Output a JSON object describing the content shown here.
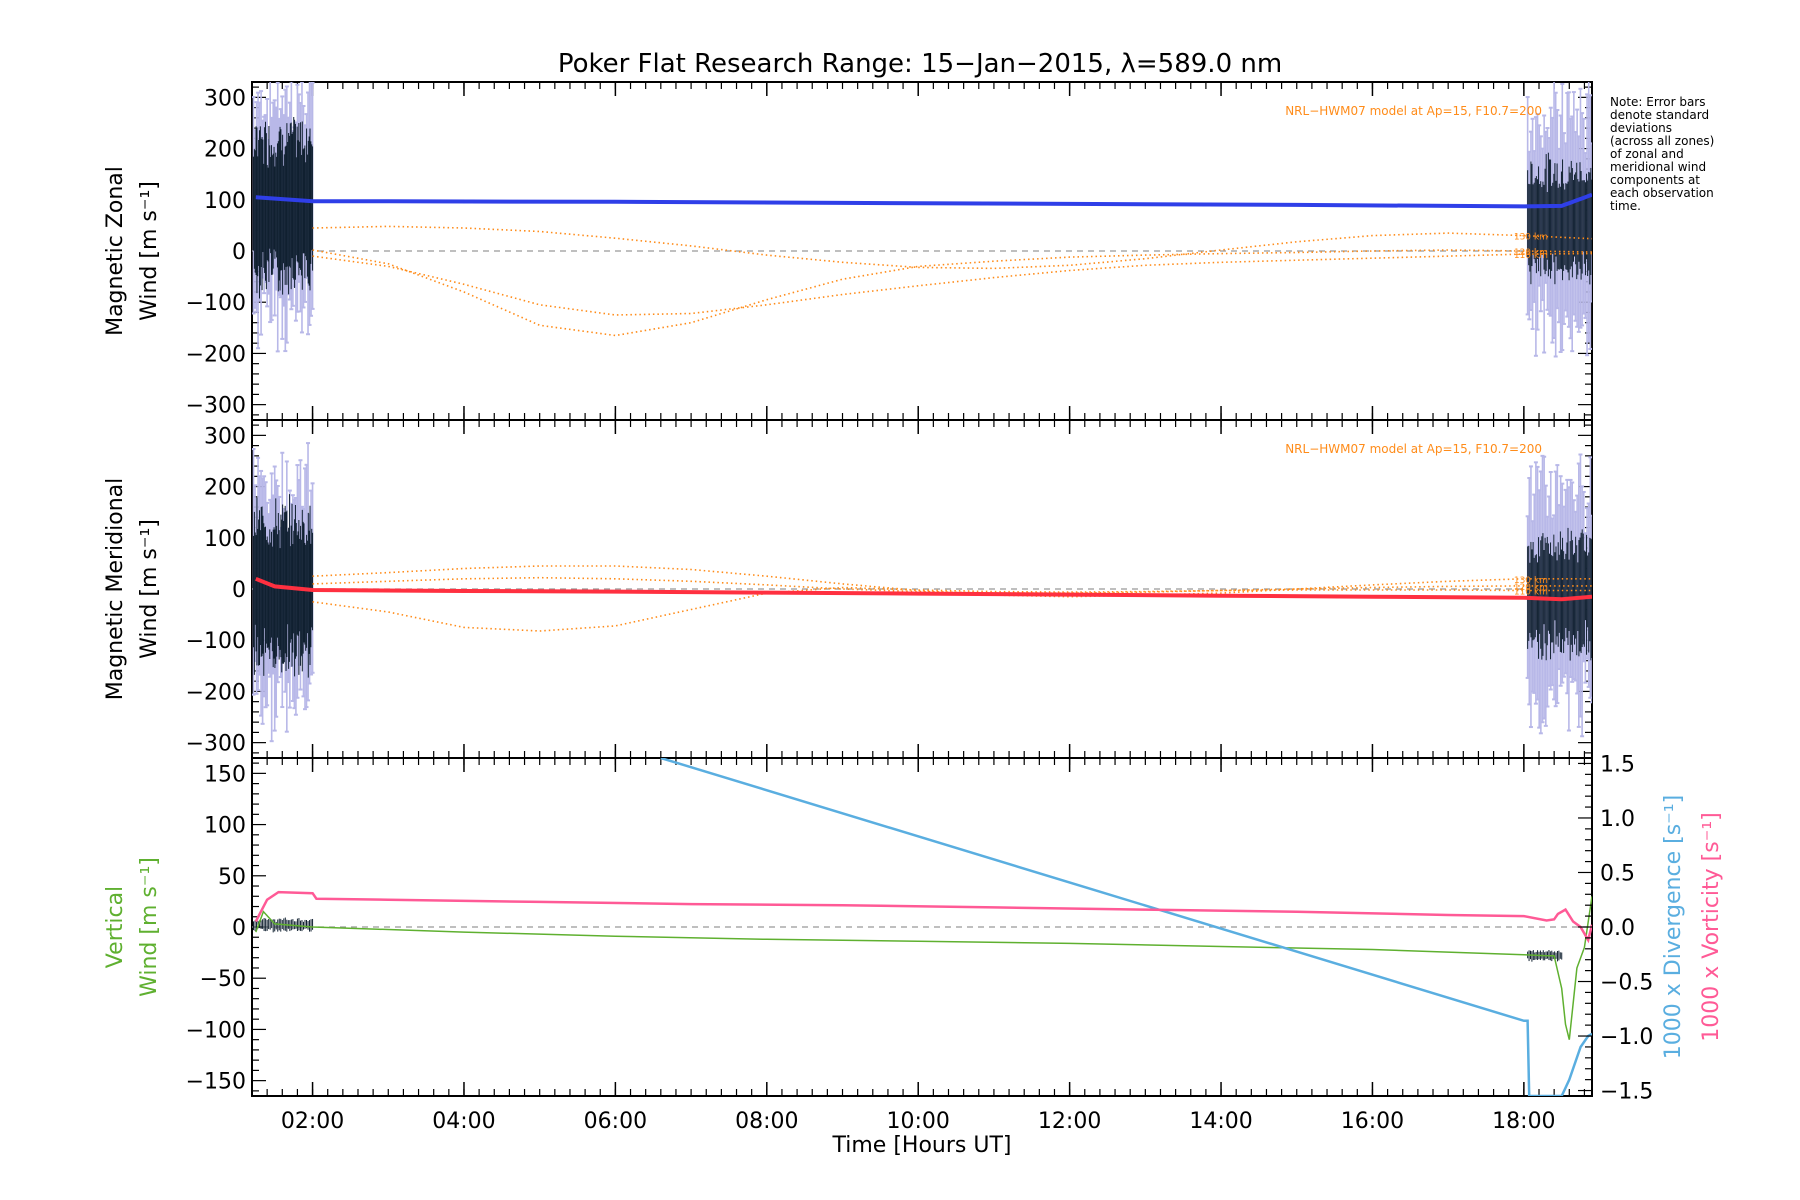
{
  "title": "Poker Flat Research Range: 15−Jan−2015, λ=589.0 nm",
  "note_lines": [
    "Note: Error bars",
    "denote standard",
    "deviations",
    "(across all zones)",
    "of zonal and",
    "meridional wind",
    "components at",
    "each observation",
    "time."
  ],
  "model_label": "NRL−HWM07 model at Ap=15, F10.7=200",
  "colors": {
    "zonal": "#2f3fe8",
    "meridional": "#ff3040",
    "model": "#ff8c1a",
    "vertical": "#5fb030",
    "divergence": "#5aaee0",
    "vorticity": "#ff5a96",
    "errorbar_light": "#b8b8e8",
    "errorbar_dark": "#102030",
    "zero_line": "#999999"
  },
  "chart_data": [
    {
      "type": "line",
      "panel": "zonal",
      "ylabel_lines": [
        "Magnetic Zonal",
        "Wind [m s⁻¹]"
      ],
      "ylim": [
        -330,
        330
      ],
      "yticks": [
        300,
        200,
        100,
        0,
        -100,
        -200,
        -300
      ],
      "xlim": [
        1.2,
        18.9
      ],
      "series": [
        {
          "role": "measured",
          "x": [
            1.25,
            2.0,
            3.0,
            6.0,
            9.0,
            12.0,
            15.0,
            18.0,
            18.5,
            18.9
          ],
          "values": [
            105,
            97,
            97,
            96,
            94,
            92,
            90,
            87,
            88,
            110
          ]
        }
      ],
      "model_series": [
        {
          "name": "130 km",
          "x": [
            2.0,
            3.0,
            4.0,
            5.0,
            6.0,
            7.0,
            8.0,
            9.0,
            10.0,
            11.0,
            12.0,
            13.0,
            14.0,
            15.0,
            16.0,
            17.0,
            18.0,
            18.9
          ],
          "values": [
            45,
            48,
            45,
            38,
            25,
            10,
            -8,
            -22,
            -32,
            -34,
            -28,
            -15,
            2,
            18,
            30,
            35,
            30,
            24
          ]
        },
        {
          "name": "120 km",
          "x": [
            2.0,
            3.0,
            4.0,
            5.0,
            6.0,
            7.0,
            8.0,
            9.0,
            10.0,
            11.0,
            12.0,
            13.0,
            14.0,
            15.0,
            16.0,
            17.0,
            18.0,
            18.9
          ],
          "values": [
            2,
            -25,
            -80,
            -145,
            -165,
            -140,
            -95,
            -55,
            -30,
            -20,
            -12,
            -8,
            -5,
            -3,
            0,
            2,
            0,
            -2
          ]
        },
        {
          "name": "110 km",
          "x": [
            2.0,
            3.0,
            4.0,
            5.0,
            6.0,
            7.0,
            8.0,
            9.0,
            10.0,
            11.0,
            12.0,
            13.0,
            14.0,
            15.0,
            16.0,
            17.0,
            18.0,
            18.9
          ],
          "values": [
            -10,
            -30,
            -65,
            -105,
            -125,
            -122,
            -105,
            -85,
            -68,
            -52,
            -38,
            -28,
            -22,
            -18,
            -14,
            -10,
            -6,
            -5
          ]
        }
      ],
      "model_label_text": [
        "130 km",
        "120 km",
        "110 km"
      ]
    },
    {
      "type": "line",
      "panel": "meridional",
      "ylabel_lines": [
        "Magnetic Meridional",
        "Wind [m s⁻¹]"
      ],
      "ylim": [
        -330,
        330
      ],
      "yticks": [
        300,
        200,
        100,
        0,
        -100,
        -200,
        -300
      ],
      "xlim": [
        1.2,
        18.9
      ],
      "series": [
        {
          "role": "measured",
          "x": [
            1.25,
            1.5,
            2.0,
            4.0,
            6.0,
            8.0,
            10.0,
            12.0,
            14.0,
            16.0,
            18.0,
            18.5,
            18.9
          ],
          "values": [
            20,
            5,
            -2,
            -4,
            -5,
            -7,
            -9,
            -11,
            -13,
            -15,
            -17,
            -20,
            -15
          ]
        }
      ],
      "model_series": [
        {
          "name": "130 km",
          "x": [
            2.0,
            3.0,
            4.0,
            5.0,
            6.0,
            7.0,
            8.0,
            9.0,
            10.0,
            11.0,
            12.0,
            13.0,
            14.0,
            15.0,
            16.0,
            17.0,
            18.0,
            18.9
          ],
          "values": [
            25,
            32,
            40,
            45,
            45,
            38,
            25,
            10,
            -3,
            -12,
            -15,
            -12,
            -8,
            0,
            8,
            15,
            20,
            20
          ]
        },
        {
          "name": "120 km",
          "x": [
            2.0,
            3.0,
            4.0,
            5.0,
            6.0,
            7.0,
            8.0,
            9.0,
            10.0,
            11.0,
            12.0,
            13.0,
            14.0,
            15.0,
            16.0,
            17.0,
            18.0,
            18.9
          ],
          "values": [
            10,
            15,
            20,
            22,
            20,
            15,
            8,
            0,
            -5,
            -8,
            -8,
            -6,
            -3,
            0,
            3,
            5,
            6,
            6
          ]
        },
        {
          "name": "110 km",
          "x": [
            2.0,
            3.0,
            4.0,
            5.0,
            6.0,
            7.0,
            8.0,
            9.0,
            10.0,
            11.0,
            12.0,
            13.0,
            14.0,
            15.0,
            16.0,
            17.0,
            18.0,
            18.9
          ],
          "values": [
            -25,
            -45,
            -75,
            -82,
            -72,
            -40,
            -8,
            3,
            -2,
            -5,
            -6,
            -5,
            -3,
            -2,
            -2,
            -2,
            -3,
            -3
          ]
        }
      ],
      "model_label_text": [
        "130 km",
        "120 km",
        "110 km"
      ]
    },
    {
      "type": "line",
      "panel": "vertical",
      "ylabel_lines": [
        "Vertical",
        "Wind [m s⁻¹]"
      ],
      "ylim": [
        -165,
        165
      ],
      "yticks": [
        150,
        100,
        50,
        0,
        -50,
        -100,
        -150
      ],
      "xlim": [
        1.2,
        18.9
      ],
      "xticks": [
        "02:00",
        "04:00",
        "06:00",
        "08:00",
        "10:00",
        "12:00",
        "14:00",
        "16:00",
        "18:00"
      ],
      "xtick_values": [
        2,
        4,
        6,
        8,
        10,
        12,
        14,
        16,
        18
      ],
      "xlabel": "Time [Hours UT]",
      "series": [
        {
          "name": "Vertical Wind",
          "x": [
            1.25,
            1.35,
            1.5,
            2.0,
            4.0,
            6.0,
            8.0,
            10.0,
            12.0,
            14.0,
            16.0,
            18.0,
            18.3,
            18.4,
            18.5,
            18.55,
            18.6,
            18.7,
            18.8,
            18.9
          ],
          "values": [
            -5,
            15,
            3,
            0,
            -5,
            -9,
            -12,
            -14,
            -16,
            -19,
            -22,
            -27,
            -28,
            -28,
            -60,
            -95,
            -110,
            -40,
            -20,
            30
          ]
        }
      ],
      "right_axes": [
        {
          "label": "1000 x Divergence [s⁻¹]",
          "ylim": [
            -1.55,
            1.55
          ],
          "yticks": [
            1.5,
            1.0,
            0.5,
            0.0,
            -0.5,
            -1.0,
            -1.5
          ],
          "tick_labels": [
            "1.5",
            "1.0",
            "0.5",
            "0.0",
            "−0.5",
            "−1.0",
            "−1.5"
          ],
          "series": {
            "name": "Divergence",
            "x": [
              6.6,
              18.0,
              18.05,
              18.07,
              18.5,
              18.6,
              18.75,
              18.85,
              18.9
            ],
            "values": [
              1.55,
              -0.86,
              -0.86,
              -1.55,
              -1.55,
              -1.4,
              -1.1,
              -1.0,
              -0.98
            ]
          }
        },
        {
          "label": "1000 x Vorticity [s⁻¹]",
          "series": {
            "name": "Vorticity",
            "x": [
              1.25,
              1.4,
              1.55,
              2.0,
              2.05,
              3.0,
              5.0,
              7.0,
              9.0,
              11.0,
              13.0,
              15.0,
              17.0,
              18.0,
              18.3,
              18.4,
              18.45,
              18.55,
              18.65,
              18.75,
              18.85,
              18.9
            ],
            "values": [
              0.05,
              0.25,
              0.32,
              0.31,
              0.26,
              0.25,
              0.23,
              0.21,
              0.2,
              0.18,
              0.16,
              0.14,
              0.11,
              0.1,
              0.06,
              0.07,
              0.12,
              0.16,
              0.05,
              0.0,
              -0.12,
              0.02
            ]
          }
        }
      ]
    }
  ]
}
